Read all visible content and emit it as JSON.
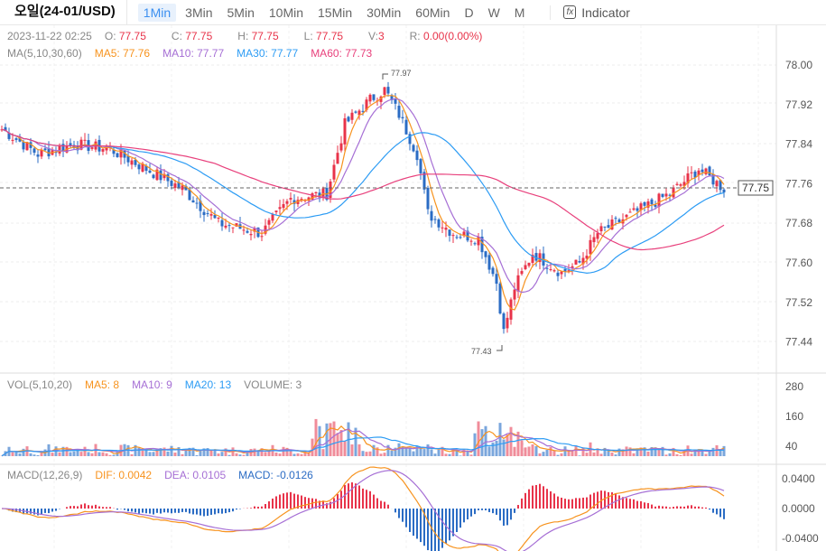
{
  "header": {
    "title": "오일(24-01/USD)",
    "intervals": [
      "1Min",
      "3Min",
      "5Min",
      "10Min",
      "15Min",
      "30Min",
      "60Min",
      "D",
      "W",
      "M"
    ],
    "active_interval": "1Min",
    "indicator_label": "Indicator"
  },
  "ohlc_legend": {
    "time": "2023-11-22 02:25",
    "o_label": "O:",
    "o": "77.75",
    "c_label": "C:",
    "c": "77.75",
    "h_label": "H:",
    "h": "77.75",
    "l_label": "L:",
    "l": "77.75",
    "v_label": "V:",
    "v": "3",
    "r_label": "R:",
    "r": "0.00(0.00%)"
  },
  "ma_legend": {
    "label": "MA(5,10,30,60)",
    "ma5": "MA5: 77.76",
    "ma10": "MA10: 77.77",
    "ma30": "MA30: 77.77",
    "ma60": "MA60: 77.73"
  },
  "vol_legend": {
    "label": "VOL(5,10,20)",
    "ma5": "MA5: 8",
    "ma10": "MA10: 9",
    "ma20": "MA20: 13",
    "volume": "VOLUME: 3"
  },
  "macd_legend": {
    "label": "MACD(12,26,9)",
    "dif": "DIF: 0.0042",
    "dea": "DEA: 0.0105",
    "macd": "MACD: -0.0126"
  },
  "price_axis": [
    "78.00",
    "77.92",
    "77.84",
    "77.76",
    "77.68",
    "77.60",
    "77.52",
    "77.44"
  ],
  "current_price": "77.75",
  "high_marker": "77.97",
  "low_marker": "77.43",
  "vol_axis": [
    "280",
    "160",
    "40"
  ],
  "macd_axis": [
    "0.0400",
    "0.0000",
    "-0.0400"
  ],
  "colors": {
    "up": "#e8334a",
    "down": "#2b6cc4",
    "ma5": "#f7931e",
    "ma10": "#a66fd5",
    "ma30": "#2d9cf4",
    "ma60": "#e8407c"
  },
  "chart_data": {
    "type": "candlestick",
    "title": "오일(24-01/USD) 1Min",
    "ylim": [
      77.4,
      78.04
    ],
    "close_path": [
      [
        0,
        77.87
      ],
      [
        10,
        77.82
      ],
      [
        20,
        77.84
      ],
      [
        30,
        77.83
      ],
      [
        40,
        77.79
      ],
      [
        50,
        77.75
      ],
      [
        60,
        77.68
      ],
      [
        72,
        77.66
      ],
      [
        80,
        77.73
      ],
      [
        90,
        77.74
      ],
      [
        95,
        77.88
      ],
      [
        102,
        77.93
      ],
      [
        106,
        77.95
      ],
      [
        110,
        77.9
      ],
      [
        115,
        77.82
      ],
      [
        118,
        77.7
      ],
      [
        125,
        77.66
      ],
      [
        132,
        77.65
      ],
      [
        137,
        77.56
      ],
      [
        139,
        77.46
      ],
      [
        142,
        77.55
      ],
      [
        147,
        77.62
      ],
      [
        155,
        77.58
      ],
      [
        160,
        77.6
      ],
      [
        165,
        77.66
      ],
      [
        175,
        77.7
      ],
      [
        185,
        77.74
      ],
      [
        193,
        77.79
      ],
      [
        200,
        77.75
      ]
    ]
  }
}
